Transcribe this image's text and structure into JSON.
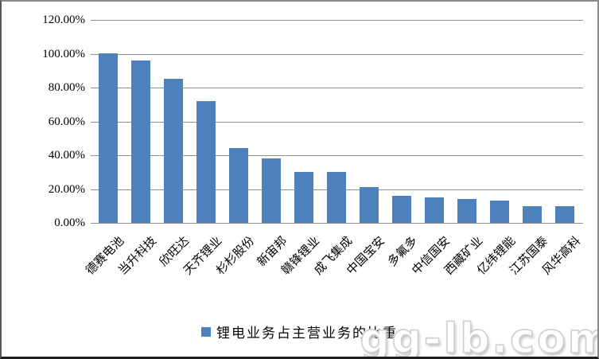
{
  "chart_data": {
    "type": "bar",
    "title": "",
    "xlabel": "",
    "ylabel": "",
    "categories": [
      "德赛电池",
      "当升科技",
      "欣旺达",
      "天齐锂业",
      "杉杉股份",
      "新宙邦",
      "赣锋锂业",
      "成飞集成",
      "中国宝安",
      "多氟多",
      "中信国安",
      "西藏矿业",
      "亿纬锂能",
      "江苏国泰",
      "风华高科"
    ],
    "values": [
      100,
      96,
      85,
      72,
      44,
      38,
      30,
      30,
      21,
      16,
      15,
      14,
      13,
      10,
      10
    ],
    "value_unit": "%",
    "series_name": "锂电业务占主营业务的比重",
    "ylim": [
      0,
      120
    ],
    "y_ticks": [
      "120.00%",
      "100.00%",
      "80.00%",
      "60.00%",
      "40.00%",
      "20.00%",
      "0.00%"
    ],
    "grid": true,
    "legend_position": "bottom",
    "bar_color": "#4F81BD"
  },
  "legend": {
    "label": "锂电业务占主营业务的比重",
    "marker_color": "#4F81BD"
  },
  "watermark": {
    "text": "gg-lb.com"
  },
  "colors": {
    "bar": "#4F81BD",
    "gridline": "#8f8f8f",
    "text": "#000000"
  }
}
